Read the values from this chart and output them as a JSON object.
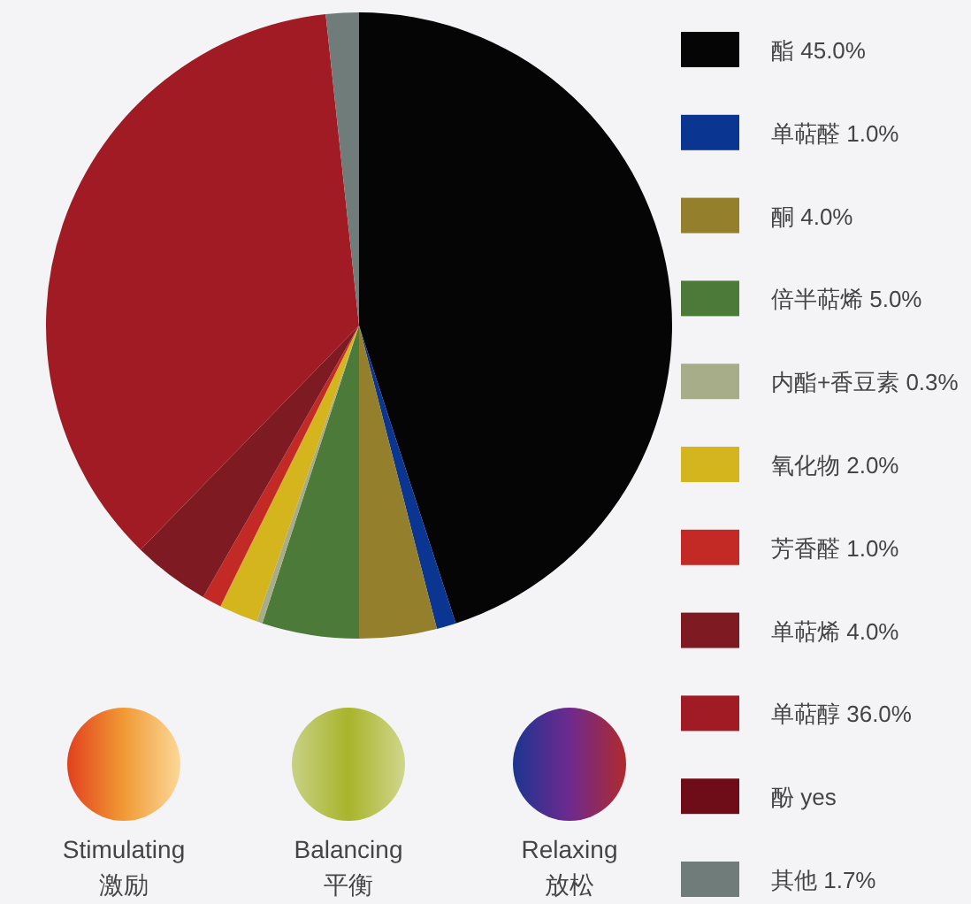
{
  "chart_data": {
    "type": "pie",
    "categories": [
      "酯",
      "单萜醛",
      "酮",
      "倍半萜烯",
      "内酯+香豆素",
      "氧化物",
      "芳香醛",
      "单萜烯",
      "单萜醇",
      "酚",
      "其他"
    ],
    "values": [
      45.0,
      1.0,
      4.0,
      5.0,
      0.3,
      2.0,
      1.0,
      4.0,
      36.0,
      null,
      1.7
    ],
    "value_labels": [
      "45.0%",
      "1.0%",
      "4.0%",
      "5.0%",
      "0.3%",
      "2.0%",
      "1.0%",
      "4.0%",
      "36.0%",
      "yes",
      "1.7%"
    ],
    "colors": [
      "#050505",
      "#0a3591",
      "#94802c",
      "#4b7a39",
      "#a6ad88",
      "#d4b51e",
      "#c32a25",
      "#7e1a22",
      "#a11b24",
      "#6e0d17",
      "#6f7c79"
    ],
    "legend": "right",
    "annotations": [
      "Stimulating\n激励",
      "Balancing\n平衡",
      "Relaxing\n放松"
    ]
  }
}
